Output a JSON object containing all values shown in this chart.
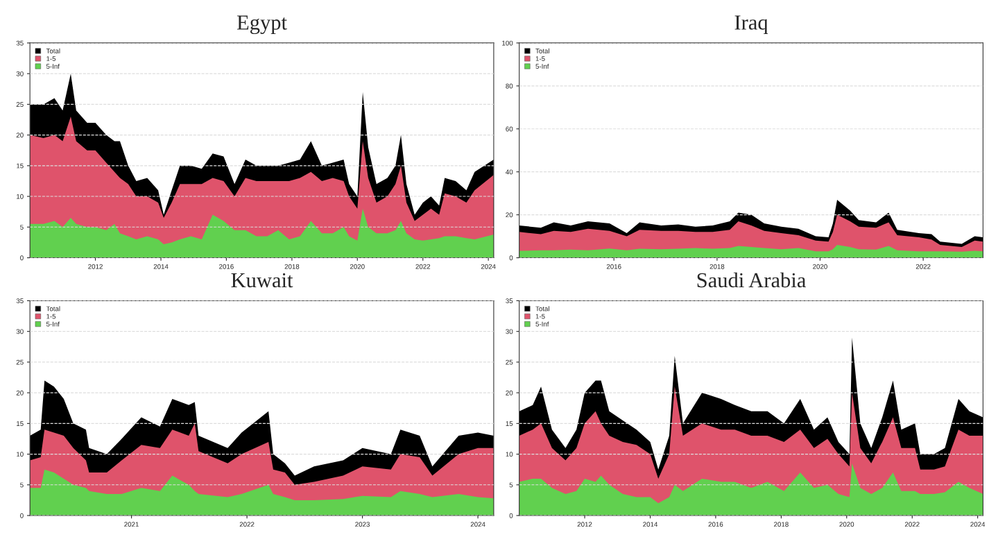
{
  "chart_data": [
    {
      "type": "area",
      "title": "Egypt",
      "legend": "top left",
      "grid": "y",
      "x": [
        "2010-01",
        "2010-06",
        "2010-10",
        "2011-01",
        "2011-04",
        "2011-06",
        "2011-10",
        "2012-01",
        "2012-05",
        "2012-08",
        "2012-10",
        "2013-01",
        "2013-04",
        "2013-08",
        "2013-12",
        "2014-02",
        "2014-05",
        "2014-08",
        "2014-12",
        "2015-04",
        "2015-08",
        "2015-12",
        "2016-04",
        "2016-08",
        "2016-12",
        "2017-04",
        "2017-08",
        "2017-12",
        "2018-04",
        "2018-08",
        "2018-12",
        "2019-04",
        "2019-08",
        "2019-10",
        "2020-01",
        "2020-03",
        "2020-05",
        "2020-08",
        "2020-12",
        "2021-03",
        "2021-05",
        "2021-07",
        "2021-10",
        "2022-01",
        "2022-04",
        "2022-07",
        "2022-09",
        "2023-01",
        "2023-05",
        "2023-08",
        "2024-03"
      ],
      "series": [
        {
          "name": "Total",
          "color": "#000000",
          "values": [
            25,
            25,
            26,
            24,
            30,
            24,
            22,
            22,
            20,
            19,
            19,
            15,
            12.5,
            13,
            11,
            7,
            11,
            15,
            15,
            14.5,
            17,
            16.5,
            12,
            16,
            15,
            15,
            15,
            15.5,
            16,
            19,
            15,
            15.5,
            16,
            12,
            10,
            27,
            18,
            12,
            13,
            15,
            20,
            12,
            7,
            9,
            10,
            8.5,
            13,
            12.5,
            11,
            14,
            16
          ]
        },
        {
          "name": "1-5",
          "color": "#df536b",
          "values": [
            20,
            19.5,
            20,
            19,
            23,
            19,
            17.5,
            17.5,
            15.5,
            14,
            13,
            12,
            10,
            10,
            9,
            6.5,
            9,
            12,
            12,
            12,
            13,
            12.5,
            10,
            13,
            12.5,
            12.5,
            12.5,
            12.5,
            13,
            14,
            12.5,
            13,
            12.5,
            10,
            8,
            19,
            13,
            9,
            10,
            12,
            15,
            9,
            6,
            7,
            8,
            7,
            10.5,
            10,
            9,
            11,
            13.5
          ]
        },
        {
          "name": "5-Inf",
          "color": "#61d04f",
          "values": [
            5.5,
            5.5,
            6,
            5,
            6.5,
            5.5,
            5,
            5,
            4.5,
            5.5,
            4,
            3.5,
            3,
            3.5,
            3,
            2.2,
            2.5,
            3,
            3.5,
            3,
            7,
            6,
            4.5,
            4.5,
            3.5,
            3.5,
            4.5,
            3,
            3.5,
            6,
            4,
            4,
            5,
            3.5,
            2.8,
            8,
            5,
            4,
            4,
            4.5,
            6,
            4,
            3,
            2.8,
            3,
            3.2,
            3.5,
            3.5,
            3.2,
            3,
            3.8
          ]
        }
      ],
      "xlim": [
        "2010-01-01",
        "2024-03-01"
      ],
      "xticks": [
        "2012",
        "2014",
        "2016",
        "2018",
        "2020",
        "2022",
        "2024"
      ],
      "ylim": [
        0,
        35
      ],
      "yticks": [
        0,
        5,
        10,
        15,
        20,
        25,
        30,
        35
      ]
    },
    {
      "type": "area",
      "title": "Iraq",
      "legend": "top left",
      "grid": "y",
      "x": [
        "2014-03",
        "2014-08",
        "2014-11",
        "2015-03",
        "2015-07",
        "2015-12",
        "2016-04",
        "2016-07",
        "2016-12",
        "2017-04",
        "2017-08",
        "2017-12",
        "2018-04",
        "2018-06",
        "2018-09",
        "2018-12",
        "2019-04",
        "2019-08",
        "2019-12",
        "2020-03",
        "2020-04",
        "2020-05",
        "2020-08",
        "2020-10",
        "2021-02",
        "2021-05",
        "2021-07",
        "2021-12",
        "2022-03",
        "2022-05",
        "2022-10",
        "2023-01",
        "2023-03"
      ],
      "series": [
        {
          "name": "Total",
          "color": "#000000",
          "values": [
            15,
            14,
            16.5,
            15,
            17,
            16,
            11.5,
            16.5,
            15,
            15.5,
            14.5,
            15,
            17,
            21,
            20,
            16,
            14.5,
            13.5,
            10,
            9.5,
            16,
            27,
            22,
            17.5,
            16.5,
            21,
            13,
            11.5,
            11,
            7.5,
            6.5,
            10,
            9.5
          ]
        },
        {
          "name": "1-5",
          "color": "#df536b",
          "values": [
            12,
            11,
            12.5,
            12,
            13.5,
            12.5,
            10,
            13,
            12.5,
            12.5,
            12,
            12,
            13,
            17,
            15,
            12.5,
            11.5,
            10.5,
            8,
            7.5,
            12,
            20,
            17,
            14.5,
            14,
            16.5,
            10.5,
            9.5,
            8.5,
            6,
            5,
            8,
            7.5
          ]
        },
        {
          "name": "5-Inf",
          "color": "#61d04f",
          "values": [
            3.2,
            3.5,
            3.5,
            3.8,
            3.5,
            4.3,
            3.5,
            4.2,
            4,
            4.2,
            4.5,
            4.2,
            4.5,
            5.5,
            5,
            4.5,
            4,
            4.5,
            3,
            3,
            4,
            6,
            5,
            4,
            3.8,
            5.5,
            3.5,
            3,
            3,
            3,
            2.8,
            3.2,
            3
          ]
        }
      ],
      "xlim": [
        "2014-03-01",
        "2023-03-01"
      ],
      "xticks": [
        "2016",
        "2018",
        "2020",
        "2022"
      ],
      "ylim": [
        0,
        100
      ],
      "yticks": [
        0,
        20,
        40,
        60,
        80,
        100
      ]
    },
    {
      "type": "area",
      "title": "Kuwait",
      "legend": "top left",
      "grid": "y",
      "x": [
        "2020-02-15",
        "2020-03-20",
        "2020-04-01",
        "2020-05-01",
        "2020-06-01",
        "2020-07-01",
        "2020-08-10",
        "2020-08-20",
        "2020-10-15",
        "2020-12-01",
        "2021-02-01",
        "2021-04-01",
        "2021-05-10",
        "2021-07-01",
        "2021-07-20",
        "2021-08-01",
        "2021-11-01",
        "2021-12-15",
        "2022-03-10",
        "2022-03-25",
        "2022-05-01",
        "2022-06-01",
        "2022-08-01",
        "2022-11-01",
        "2023-01-01",
        "2023-04-01",
        "2023-05-01",
        "2023-07-01",
        "2023-08-10",
        "2023-11-01",
        "2024-01-01",
        "2024-02-20"
      ],
      "series": [
        {
          "name": "Total",
          "color": "#000000",
          "values": [
            13,
            14,
            22,
            21,
            19,
            15,
            14,
            11,
            10,
            12.5,
            16,
            14.5,
            19,
            18,
            18.5,
            13,
            11,
            13.5,
            17,
            10,
            8.5,
            6.5,
            8,
            9,
            11,
            10,
            14,
            13,
            8,
            13,
            13.5,
            13
          ]
        },
        {
          "name": "1-5",
          "color": "#df536b",
          "values": [
            9,
            9.5,
            14,
            13.5,
            13,
            11,
            9,
            7,
            7,
            9,
            11.5,
            11,
            14,
            13,
            15,
            10.5,
            8.5,
            10,
            12,
            7.5,
            7,
            5,
            5.5,
            6.5,
            8,
            7.5,
            10,
            9.5,
            6.5,
            10,
            11,
            11
          ]
        },
        {
          "name": "5-Inf",
          "color": "#61d04f",
          "values": [
            4.5,
            4.5,
            7.5,
            7,
            6,
            5,
            4.5,
            4,
            3.5,
            3.5,
            4.5,
            4,
            6.5,
            5,
            4,
            3.5,
            3,
            3.5,
            5,
            3.5,
            3,
            2.5,
            2.5,
            2.7,
            3.2,
            3,
            4,
            3.5,
            3,
            3.5,
            3,
            2.8
          ]
        }
      ],
      "xlim": [
        "2020-02-15",
        "2024-02-20"
      ],
      "xticks": [
        "2021",
        "2022",
        "2023",
        "2024"
      ],
      "ylim": [
        0,
        35
      ],
      "yticks": [
        0,
        5,
        10,
        15,
        20,
        25,
        30,
        35
      ]
    },
    {
      "type": "area",
      "title": "Saudi Arabia",
      "legend": "top left",
      "grid": "y",
      "x": [
        "2010-01",
        "2010-06",
        "2010-09",
        "2011-01",
        "2011-06",
        "2011-10",
        "2012-01",
        "2012-05",
        "2012-07",
        "2012-10",
        "2013-03",
        "2013-08",
        "2014-01",
        "2014-04",
        "2014-08",
        "2014-10",
        "2015-01",
        "2015-08",
        "2016-03",
        "2016-08",
        "2017-02",
        "2017-08",
        "2018-02",
        "2018-08",
        "2019-01",
        "2019-06",
        "2019-10",
        "2020-02",
        "2020-03",
        "2020-06",
        "2020-10",
        "2021-02",
        "2021-06",
        "2021-09",
        "2022-02",
        "2022-04",
        "2022-09",
        "2023-01",
        "2023-06",
        "2023-10",
        "2024-03"
      ],
      "series": [
        {
          "name": "Total",
          "color": "#000000",
          "values": [
            17,
            18,
            21,
            14,
            11,
            14,
            20,
            22,
            22,
            17,
            15.5,
            14,
            12,
            7.5,
            13,
            26,
            15,
            20,
            19,
            18,
            17,
            17,
            15,
            19,
            14,
            16,
            12,
            10,
            29,
            15,
            11,
            16,
            22,
            14,
            15,
            10,
            10,
            11,
            19,
            17,
            16
          ]
        },
        {
          "name": "1-5",
          "color": "#df536b",
          "values": [
            13,
            14,
            15,
            11,
            9,
            11,
            15,
            17,
            15,
            13,
            12,
            11.5,
            10,
            6,
            10,
            21,
            13,
            15,
            14,
            14,
            13,
            13,
            12,
            14,
            11,
            12.5,
            10,
            8,
            20,
            11,
            8.5,
            12,
            16,
            11,
            11,
            7.5,
            7.5,
            8,
            14,
            13,
            13
          ]
        },
        {
          "name": "5-Inf",
          "color": "#61d04f",
          "values": [
            5.5,
            6,
            6,
            4.5,
            3.5,
            4,
            6,
            5.5,
            6.5,
            5,
            3.5,
            3,
            3,
            2,
            3,
            5,
            4,
            6,
            5.5,
            5.5,
            4.5,
            5.5,
            4,
            7,
            4.5,
            5,
            3.5,
            3,
            8.5,
            4.5,
            3.5,
            4.5,
            7,
            4,
            4,
            3.5,
            3.5,
            3.8,
            5.5,
            4.5,
            3.5
          ]
        }
      ],
      "xlim": [
        "2010-01-01",
        "2024-03-01"
      ],
      "xticks": [
        "2012",
        "2014",
        "2016",
        "2018",
        "2020",
        "2022",
        "2024"
      ],
      "ylim": [
        0,
        35
      ],
      "yticks": [
        0,
        5,
        10,
        15,
        20,
        25,
        30,
        35
      ]
    }
  ]
}
